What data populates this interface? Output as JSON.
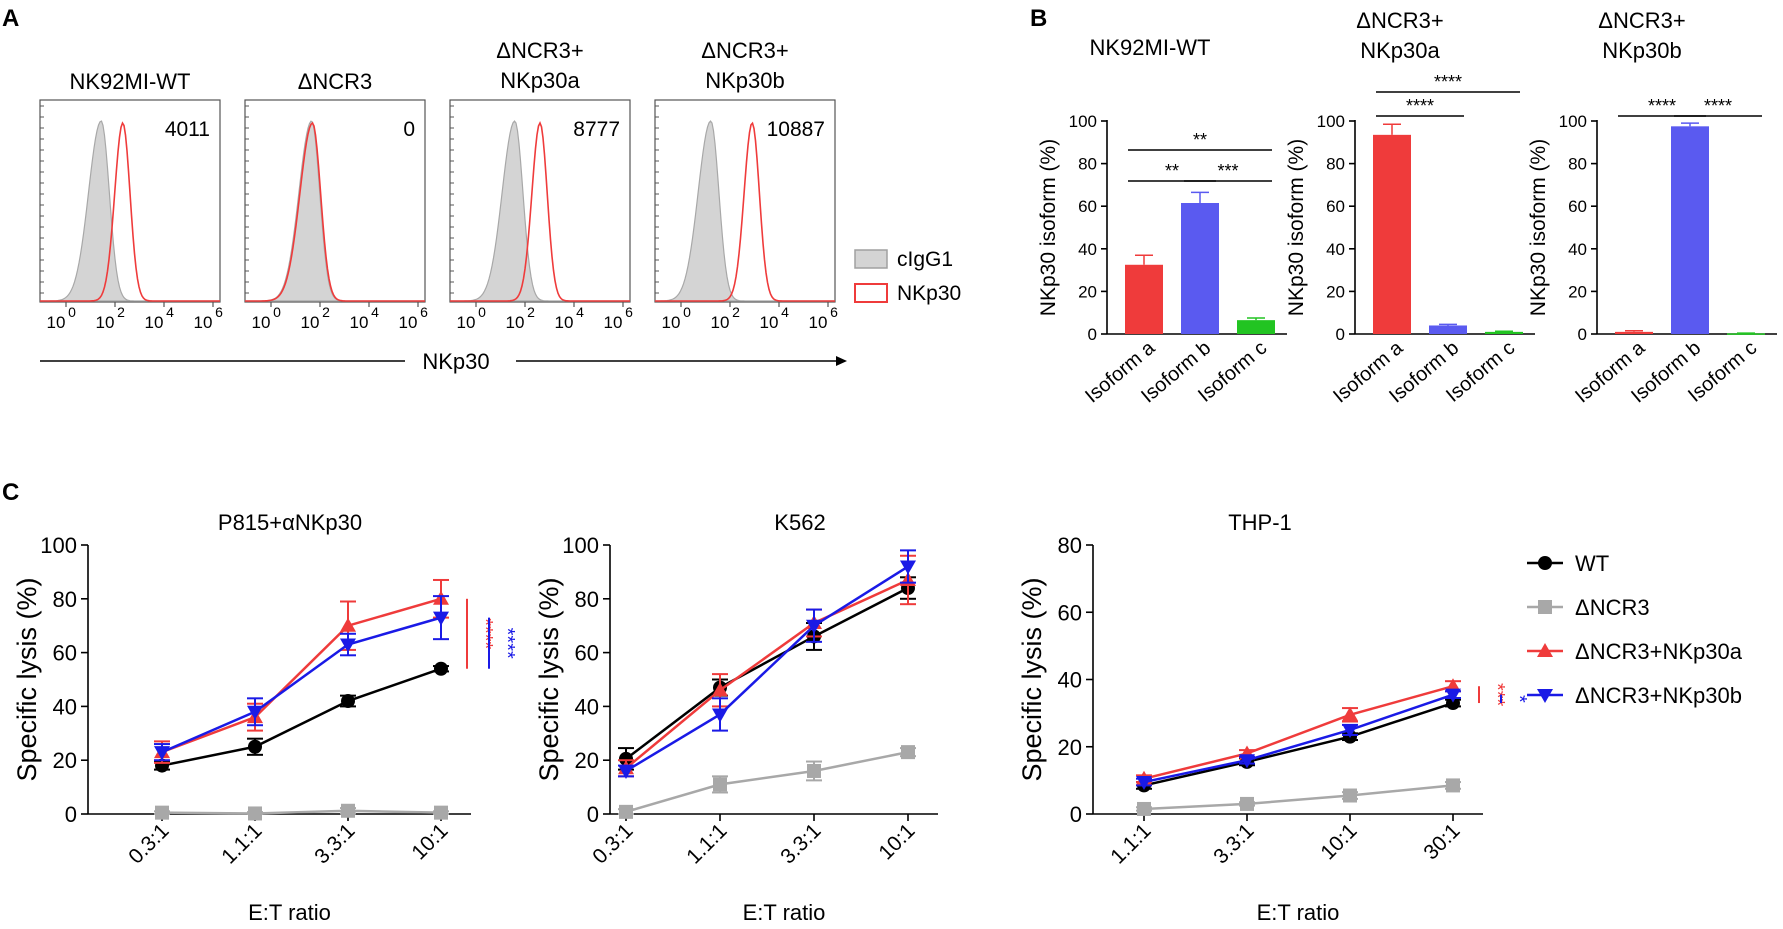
{
  "panel_labels": {
    "a": "A",
    "b": "B",
    "c": "C"
  },
  "colors": {
    "red": "#ef3b3b",
    "blue": "#1a1ae6",
    "bar_blue": "#5a5af0",
    "green": "#22c422",
    "black": "#000000",
    "gray": "#a8a8a8",
    "fill_gray": "#d4d4d4"
  },
  "panel_a": {
    "xlabel": "NKp30",
    "tick_labels": [
      "0",
      "2",
      "4",
      "6"
    ],
    "tick_base": "10",
    "histograms": [
      {
        "title_lines": [
          "NK92MI-WT"
        ],
        "mfi": "4011"
      },
      {
        "title_lines": [
          "ΔNCR3"
        ],
        "mfi": "0"
      },
      {
        "title_lines": [
          "ΔNCR3+",
          "NKp30a"
        ],
        "mfi": "8777"
      },
      {
        "title_lines": [
          "ΔNCR3+",
          "NKp30b"
        ],
        "mfi": "10887"
      }
    ],
    "legend": [
      {
        "label": "cIgG1",
        "style": "filled-gray"
      },
      {
        "label": "NKp30",
        "style": "red-outline"
      }
    ]
  },
  "chart_data": [
    {
      "type": "bar",
      "title": "NK92MI-WT",
      "categories": [
        "Isoform a",
        "Isoform b",
        "Isoform c"
      ],
      "values": [
        32.5,
        61.5,
        6.5
      ],
      "errors": [
        4.5,
        5,
        1
      ],
      "ylabel": "NKp30 isoform (%)",
      "ylim": [
        0,
        100
      ],
      "yticks": [
        0,
        20,
        40,
        60,
        80,
        100
      ],
      "significance": [
        {
          "from": 0,
          "to": 2,
          "label": "**"
        },
        {
          "from": 0,
          "to": 1,
          "label": "**"
        },
        {
          "from": 1,
          "to": 2,
          "label": "***"
        }
      ]
    },
    {
      "type": "bar",
      "title_lines": [
        "ΔNCR3+",
        "NKp30a"
      ],
      "categories": [
        "Isoform a",
        "Isoform b",
        "Isoform c"
      ],
      "values": [
        93.5,
        4,
        1
      ],
      "errors": [
        5,
        0.5,
        0.3
      ],
      "ylabel": "NKp30 isoform (%)",
      "ylim": [
        0,
        100
      ],
      "yticks": [
        0,
        20,
        40,
        60,
        80,
        100
      ],
      "significance": [
        {
          "from": 0,
          "to": 2,
          "label": "****"
        },
        {
          "from": 0,
          "to": 1,
          "label": "****"
        }
      ]
    },
    {
      "type": "bar",
      "title_lines": [
        "ΔNCR3+",
        "NKp30b"
      ],
      "categories": [
        "Isoform a",
        "Isoform b",
        "Isoform c"
      ],
      "values": [
        1,
        97.5,
        0.3
      ],
      "errors": [
        0.5,
        1.5,
        0.1
      ],
      "ylabel": "NKp30 isoform (%)",
      "ylim": [
        0,
        100
      ],
      "yticks": [
        0,
        20,
        40,
        60,
        80,
        100
      ],
      "significance": [
        {
          "from": 0,
          "to": 1,
          "label": "****"
        },
        {
          "from": 1,
          "to": 2,
          "label": "****"
        }
      ]
    },
    {
      "type": "line",
      "title": "P815+αNKp30",
      "categories": [
        "0.3:1",
        "1.1:1",
        "3.3:1",
        "10:1"
      ],
      "xlabel": "E:T ratio",
      "ylabel": "Specific lysis (%)",
      "ylim": [
        0,
        100
      ],
      "yticks": [
        0,
        20,
        40,
        60,
        80,
        100
      ],
      "series": [
        {
          "name": "WT",
          "values": [
            18,
            25,
            42,
            54
          ],
          "errors": [
            1.5,
            3,
            2,
            1
          ]
        },
        {
          "name": "ΔNCR3",
          "values": [
            0.5,
            0.2,
            1.2,
            0.5
          ],
          "errors": [
            0.5,
            0.5,
            1,
            0.5
          ]
        },
        {
          "name": "ΔNCR3+NKp30a",
          "values": [
            23,
            36,
            70,
            80
          ],
          "errors": [
            4,
            5,
            9,
            7
          ]
        },
        {
          "name": "ΔNCR3+NKp30b",
          "values": [
            23,
            38,
            63,
            73
          ],
          "errors": [
            3,
            5,
            4,
            8
          ]
        }
      ],
      "significance": [
        {
          "series": "ΔNCR3+NKp30a",
          "label": "****"
        },
        {
          "series": "ΔNCR3+NKp30b",
          "label": "****"
        }
      ]
    },
    {
      "type": "line",
      "title": "K562",
      "categories": [
        "0.3:1",
        "1.1:1",
        "3.3:1",
        "10:1"
      ],
      "xlabel": "E:T ratio",
      "ylabel": "Specific lysis (%)",
      "ylim": [
        0,
        100
      ],
      "yticks": [
        0,
        20,
        40,
        60,
        80,
        100
      ],
      "series": [
        {
          "name": "WT",
          "values": [
            20.5,
            47,
            66,
            84
          ],
          "errors": [
            4,
            3,
            5,
            4
          ]
        },
        {
          "name": "ΔNCR3",
          "values": [
            0.8,
            11,
            16,
            23
          ],
          "errors": [
            1,
            3,
            3.5,
            1.5
          ]
        },
        {
          "name": "ΔNCR3+NKp30a",
          "values": [
            17,
            46,
            71,
            87
          ],
          "errors": [
            3,
            6,
            5,
            9
          ]
        },
        {
          "name": "ΔNCR3+NKp30b",
          "values": [
            16,
            37,
            70,
            92
          ],
          "errors": [
            2,
            6,
            6,
            6
          ]
        }
      ]
    },
    {
      "type": "line",
      "title": "THP-1",
      "categories": [
        "1.1:1",
        "3.3:1",
        "10:1",
        "30:1"
      ],
      "xlabel": "E:T ratio",
      "ylabel": "Specific lysis (%)",
      "ylim": [
        0,
        80
      ],
      "yticks": [
        0,
        20,
        40,
        60,
        80
      ],
      "series": [
        {
          "name": "WT",
          "values": [
            8.5,
            15.5,
            23,
            33
          ],
          "errors": [
            1,
            1,
            1,
            1
          ]
        },
        {
          "name": "ΔNCR3",
          "values": [
            1.5,
            3,
            5.5,
            8.5
          ],
          "errors": [
            0.5,
            0.5,
            1,
            1
          ]
        },
        {
          "name": "ΔNCR3+NKp30a",
          "values": [
            10.5,
            18,
            29.5,
            38
          ],
          "errors": [
            1,
            1,
            2,
            1.5
          ]
        },
        {
          "name": "ΔNCR3+NKp30b",
          "values": [
            9.5,
            16,
            25,
            35.5
          ],
          "errors": [
            1,
            1,
            1.5,
            1
          ]
        }
      ],
      "significance": [
        {
          "series": "ΔNCR3+NKp30a",
          "label": "***"
        },
        {
          "series": "ΔNCR3+NKp30b",
          "label": "*"
        }
      ]
    }
  ],
  "legend_c": [
    {
      "label": "WT",
      "marker": "circle",
      "color": "#000000"
    },
    {
      "label": "ΔNCR3",
      "marker": "square",
      "color": "#a8a8a8"
    },
    {
      "label": "ΔNCR3+NKp30a",
      "marker": "triangle-up",
      "color": "#ef3b3b"
    },
    {
      "label": "ΔNCR3+NKp30b",
      "marker": "triangle-down",
      "color": "#1a1ae6"
    }
  ]
}
